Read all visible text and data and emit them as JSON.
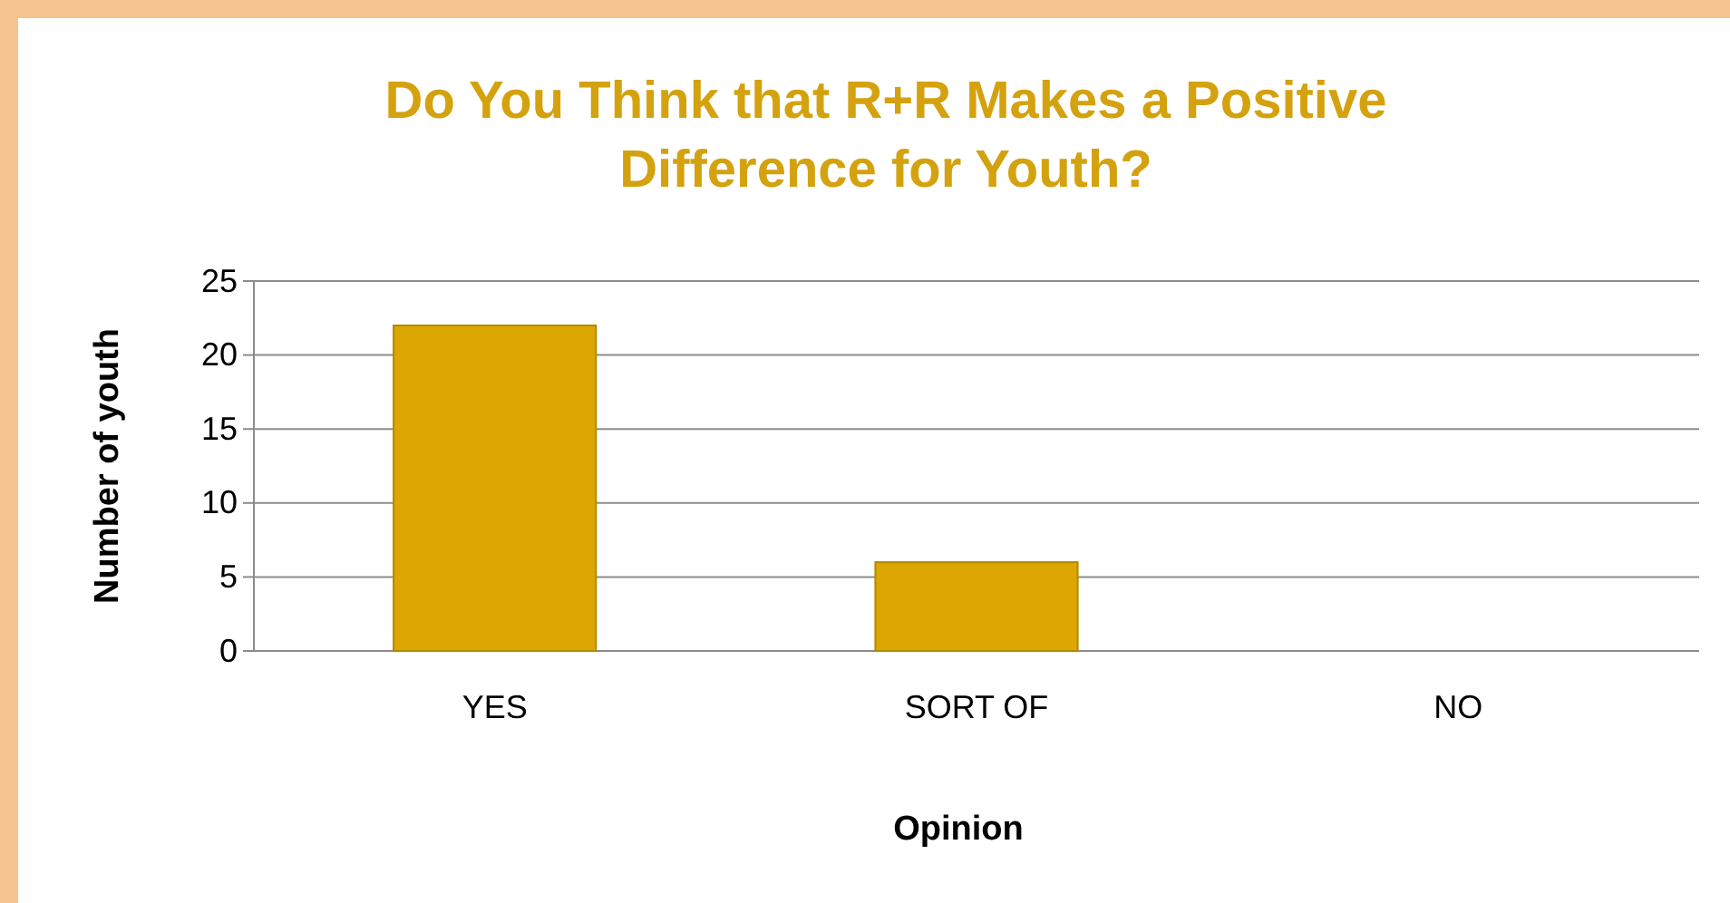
{
  "chart_data": {
    "type": "bar",
    "title": "Do You Think that R+R Makes a Positive Difference for Youth?",
    "xlabel": "Opinion",
    "ylabel": "Number of youth",
    "categories": [
      "YES",
      "SORT OF",
      "NO"
    ],
    "values": [
      22,
      6,
      0
    ],
    "color": "#dba700",
    "ylim": [
      0,
      25
    ],
    "yticks": [
      0,
      5,
      10,
      15,
      20,
      25
    ],
    "grid": "y"
  }
}
